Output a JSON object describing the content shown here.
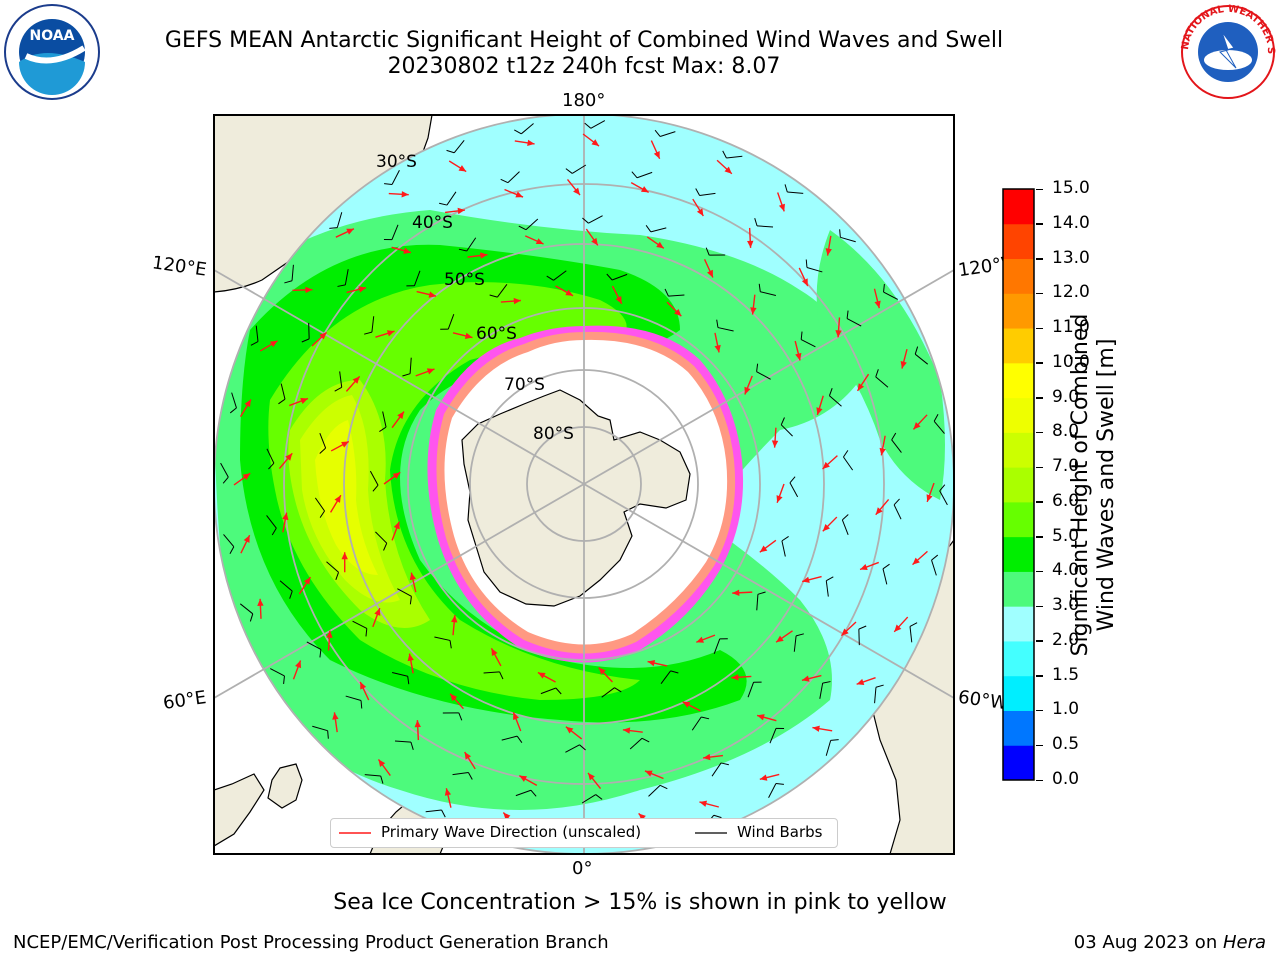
{
  "title": {
    "line1": "GEFS MEAN Antarctic Significant Height of Combined Wind Waves and Swell",
    "line2": "20230802 t12z 240h fcst   Max: 8.07"
  },
  "logos": {
    "left": {
      "icon": "noaa-logo-icon",
      "text": "NOAA"
    },
    "right": {
      "icon": "nws-logo-icon",
      "text": "NATIONAL WEATHER SERVICE"
    }
  },
  "map": {
    "projection": "south-polar-stereographic",
    "center": "South Pole",
    "longitude_labels": {
      "top": "180°",
      "bottom": "0°",
      "upper_left": "120°E",
      "upper_right": "120°W",
      "lower_left": "60°E",
      "lower_right": "60°W"
    },
    "latitude_labels": [
      "30°S",
      "40°S",
      "50°S",
      "60°S",
      "70°S",
      "80°S"
    ],
    "colors": {
      "land": "#efecdc",
      "sea_ice": "#ffffff",
      "ice_edge": "#ff44ee",
      "graticule": "#b0b0b0",
      "arrow": "#ff1a1a",
      "barb": "#000000"
    }
  },
  "legend": {
    "items": [
      {
        "label": "Primary Wave Direction (unscaled)",
        "color": "#ff1a1a"
      },
      {
        "label": "Wind Barbs",
        "color": "#000000"
      }
    ]
  },
  "colorbar": {
    "label_line1": "Significant Height of Combined",
    "label_line2": "Wind Waves and Swell [m]",
    "levels": [
      0.0,
      0.5,
      1.0,
      1.5,
      2.0,
      3.0,
      4.0,
      5.0,
      6.0,
      7.0,
      8.0,
      9.0,
      10.0,
      11.0,
      12.0,
      13.0,
      14.0,
      15.0
    ],
    "tick_labels": [
      "0.0",
      "0.5",
      "1.0",
      "1.5",
      "2.0",
      "3.0",
      "4.0",
      "5.0",
      "6.0",
      "7.0",
      "8.0",
      "9.0",
      "10.0",
      "11.0",
      "12.0",
      "13.0",
      "14.0",
      "15.0"
    ],
    "colors": [
      "#0000ff",
      "#0077ff",
      "#00eeff",
      "#44ffff",
      "#a0ffff",
      "#4dfa7c",
      "#00ee00",
      "#66ff00",
      "#aaff00",
      "#ccff00",
      "#eeff00",
      "#ffff00",
      "#ffcc00",
      "#ff9900",
      "#ff7700",
      "#ff4400",
      "#ff0000"
    ]
  },
  "caption": "Sea Ice Concentration > 15% is shown in pink to yellow",
  "footer": {
    "left": "NCEP/EMC/Verification Post Processing Product Generation Branch",
    "date": "03 Aug 2023",
    "on": " on ",
    "machine": "Hera"
  }
}
